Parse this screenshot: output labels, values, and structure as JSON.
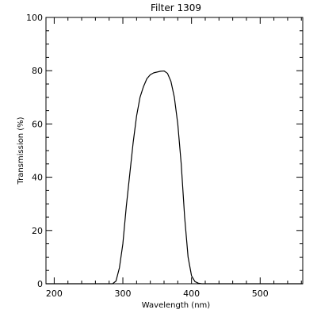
{
  "chart_data": {
    "type": "line",
    "title": "Filter 1309",
    "xlabel": "Wavelength (nm)",
    "ylabel": "Transmission (%)",
    "xlim": [
      188,
      562
    ],
    "ylim": [
      0,
      100
    ],
    "xticks": [
      200,
      300,
      400,
      500
    ],
    "yticks": [
      0,
      20,
      40,
      60,
      80,
      100
    ],
    "grid": false,
    "line_color": "#000000",
    "series": [
      {
        "x": [
          188,
          285,
          290,
          295,
          300,
          305,
          310,
          315,
          320,
          325,
          330,
          335,
          340,
          345,
          350,
          355,
          360,
          365,
          370,
          375,
          380,
          385,
          390,
          395,
          400,
          405,
          410,
          415,
          420,
          562
        ],
        "y": [
          0,
          0,
          1,
          6,
          15,
          29,
          41,
          53,
          63,
          70,
          74,
          77,
          78.5,
          79.2,
          79.5,
          79.8,
          79.9,
          79,
          76,
          70,
          60,
          45,
          25,
          10,
          3,
          0.8,
          0.2,
          0,
          0,
          0
        ]
      }
    ]
  }
}
